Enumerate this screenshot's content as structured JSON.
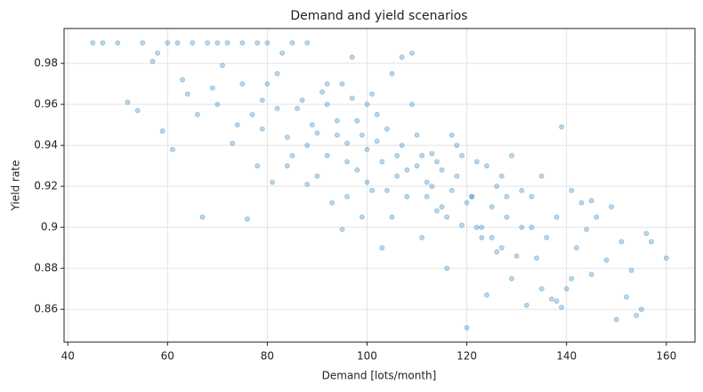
{
  "chart_data": {
    "type": "scatter",
    "title": "Demand and yield scenarios",
    "x_label": "Demand [lots/month]",
    "y_label": "Yield rate",
    "color": "#1f77b4",
    "grid": true,
    "xlim": [
      39.25,
      165.75
    ],
    "ylim": [
      0.844,
      0.997
    ],
    "xticks": [
      40,
      60,
      80,
      100,
      120,
      140,
      160
    ],
    "yticks": [
      0.86,
      0.88,
      0.9,
      0.92,
      0.94,
      0.96,
      0.98
    ],
    "x": [
      45,
      47,
      50,
      55,
      60,
      62,
      65,
      68,
      70,
      72,
      75,
      78,
      80,
      85,
      88,
      52,
      54,
      57,
      59,
      61,
      63,
      66,
      67,
      69,
      71,
      73,
      76,
      79,
      82,
      84,
      86,
      88,
      90,
      91,
      92,
      93,
      94,
      95,
      96,
      97,
      98,
      99,
      100,
      101,
      102,
      103,
      104,
      105,
      106,
      107,
      108,
      109,
      110,
      111,
      112,
      113,
      114,
      115,
      116,
      117,
      118,
      119,
      120,
      121,
      122,
      123,
      124,
      125,
      126,
      127,
      128,
      129,
      130,
      131,
      132,
      133,
      134,
      135,
      136,
      137,
      138,
      139,
      140,
      141,
      142,
      143,
      144,
      145,
      146,
      148,
      149,
      150,
      151,
      152,
      153,
      154,
      155,
      156,
      157,
      160,
      145,
      141,
      139,
      138,
      135,
      80,
      82,
      84,
      85,
      87,
      89,
      90,
      92,
      94,
      96,
      98,
      100,
      102,
      104,
      106,
      108,
      110,
      112,
      114,
      116,
      118,
      120,
      122,
      124,
      126,
      128,
      100,
      96,
      92,
      88,
      75,
      77,
      79,
      81,
      83,
      95,
      97,
      99,
      101,
      103,
      105,
      107,
      109,
      111,
      113,
      64,
      70,
      74,
      78,
      115,
      117,
      119,
      121,
      123,
      125,
      127,
      129,
      131,
      133,
      58
    ],
    "values": [
      0.99,
      0.99,
      0.99,
      0.99,
      0.99,
      0.99,
      0.99,
      0.99,
      0.99,
      0.99,
      0.99,
      0.99,
      0.99,
      0.99,
      0.99,
      0.961,
      0.957,
      0.981,
      0.947,
      0.938,
      0.972,
      0.955,
      0.905,
      0.968,
      0.979,
      0.941,
      0.904,
      0.962,
      0.975,
      0.93,
      0.958,
      0.921,
      0.946,
      0.966,
      0.935,
      0.912,
      0.952,
      0.899,
      0.941,
      0.963,
      0.928,
      0.945,
      0.938,
      0.918,
      0.955,
      0.932,
      0.948,
      0.905,
      0.925,
      0.94,
      0.915,
      0.96,
      0.93,
      0.895,
      0.922,
      0.936,
      0.908,
      0.928,
      0.88,
      0.918,
      0.925,
      0.901,
      0.851,
      0.915,
      0.932,
      0.895,
      0.867,
      0.91,
      0.92,
      0.89,
      0.905,
      0.935,
      0.886,
      0.9,
      0.862,
      0.915,
      0.885,
      0.925,
      0.895,
      0.865,
      0.905,
      0.949,
      0.87,
      0.918,
      0.89,
      0.912,
      0.899,
      0.877,
      0.905,
      0.884,
      0.91,
      0.855,
      0.893,
      0.866,
      0.879,
      0.857,
      0.86,
      0.897,
      0.893,
      0.885,
      0.913,
      0.875,
      0.861,
      0.864,
      0.87,
      0.97,
      0.958,
      0.944,
      0.935,
      0.962,
      0.95,
      0.925,
      0.96,
      0.945,
      0.932,
      0.952,
      0.922,
      0.942,
      0.918,
      0.935,
      0.928,
      0.945,
      0.915,
      0.932,
      0.905,
      0.94,
      0.912,
      0.9,
      0.93,
      0.888,
      0.915,
      0.96,
      0.915,
      0.97,
      0.94,
      0.97,
      0.955,
      0.948,
      0.922,
      0.985,
      0.97,
      0.983,
      0.905,
      0.965,
      0.89,
      0.975,
      0.983,
      0.985,
      0.935,
      0.92,
      0.965,
      0.96,
      0.95,
      0.93,
      0.91,
      0.945,
      0.935,
      0.915,
      0.9,
      0.895,
      0.925,
      0.875,
      0.918,
      0.9,
      0.985
    ]
  }
}
